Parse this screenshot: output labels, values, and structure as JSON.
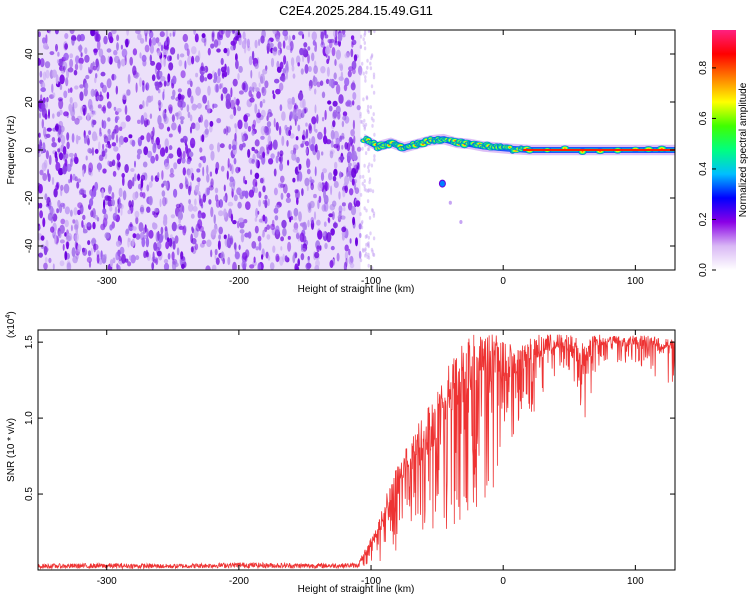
{
  "title": "C2E4.2025.284.15.49.G11",
  "chart_data": [
    {
      "type": "heatmap",
      "title": "C2E4.2025.284.15.49.G11",
      "xlabel": "Height of straight line (km)",
      "ylabel": "Frequency (Hz)",
      "xlim": [
        -352,
        130
      ],
      "ylim": [
        -50,
        50
      ],
      "xticks": [
        -300,
        -200,
        -100,
        0,
        100
      ],
      "xtick_labels": [
        "-300",
        "-200",
        "-100",
        "0",
        "100"
      ],
      "yticks": [
        -40,
        -20,
        0,
        20,
        40
      ],
      "ytick_labels": [
        "-40",
        "-20",
        "0",
        "20",
        "40"
      ],
      "noise_region_x": [
        -352,
        -108
      ],
      "signal_track": [
        {
          "x": -105,
          "y": 4.5
        },
        {
          "x": -95,
          "y": 1.5
        },
        {
          "x": -85,
          "y": 3.0
        },
        {
          "x": -75,
          "y": 1.0
        },
        {
          "x": -65,
          "y": 2.5
        },
        {
          "x": -55,
          "y": 4.0
        },
        {
          "x": -45,
          "y": 4.5
        },
        {
          "x": -35,
          "y": 3.0
        },
        {
          "x": -25,
          "y": 2.5
        },
        {
          "x": -15,
          "y": 1.5
        },
        {
          "x": -5,
          "y": 1.0
        },
        {
          "x": 5,
          "y": 0.5
        },
        {
          "x": 20,
          "y": 0.0
        },
        {
          "x": 60,
          "y": 0.0
        },
        {
          "x": 100,
          "y": 0.0
        },
        {
          "x": 130,
          "y": 0.0
        }
      ],
      "secondary_track": [
        {
          "x": -46,
          "y": -14
        },
        {
          "x": -40,
          "y": -22
        },
        {
          "x": -32,
          "y": -30
        }
      ],
      "colorbar": {
        "label": "Normalized spectral amplitude",
        "range": [
          0.0,
          0.95
        ],
        "ticks": [
          0.0,
          0.2,
          0.4,
          0.6,
          0.8
        ],
        "tick_labels": [
          "0.0",
          "0.2",
          "0.4",
          "0.6",
          "0.8"
        ],
        "colors": [
          "#ffffff",
          "#d9b8f5",
          "#8a00e6",
          "#0000ff",
          "#00bfff",
          "#00ff80",
          "#40ff00",
          "#ffff00",
          "#ff8000",
          "#ff0000",
          "#ff2080"
        ]
      }
    },
    {
      "type": "line",
      "xlabel": "Height of straight line (km)",
      "ylabel": "SNR (10 * v/v)",
      "multiplier_label": "(x10",
      "multiplier_exp": "4",
      "xlim": [
        -352,
        130
      ],
      "ylim": [
        0,
        15800
      ],
      "xticks": [
        -300,
        -200,
        -100,
        0,
        100
      ],
      "xtick_labels": [
        "-300",
        "-200",
        "-100",
        "0",
        "100"
      ],
      "yticks": [
        5000,
        10000,
        15000
      ],
      "ytick_labels": [
        "0.5",
        "1.0",
        "1.5"
      ],
      "color": "#ee3333",
      "series": [
        {
          "name": "SNR envelope",
          "x": [
            -352,
            -300,
            -250,
            -200,
            -150,
            -110,
            -95,
            -85,
            -75,
            -65,
            -55,
            -45,
            -35,
            -25,
            -15,
            -5,
            5,
            15,
            25,
            35,
            45,
            55,
            60,
            70,
            80,
            90,
            100,
            110,
            120,
            130
          ],
          "y_low": [
            100,
            100,
            100,
            150,
            100,
            150,
            400,
            900,
            1200,
            1500,
            2000,
            2500,
            3000,
            3500,
            4500,
            5500,
            8000,
            9500,
            10500,
            12500,
            13000,
            11500,
            9000,
            13000,
            14000,
            13500,
            13500,
            13000,
            12500,
            12000
          ],
          "y_high": [
            400,
            450,
            400,
            500,
            450,
            450,
            3000,
            6000,
            8000,
            9500,
            11000,
            13000,
            14500,
            15500,
            15500,
            15500,
            15000,
            15000,
            15500,
            15500,
            15500,
            15500,
            15000,
            15500,
            15500,
            15300,
            15500,
            15500,
            15300,
            15200
          ]
        }
      ]
    }
  ]
}
